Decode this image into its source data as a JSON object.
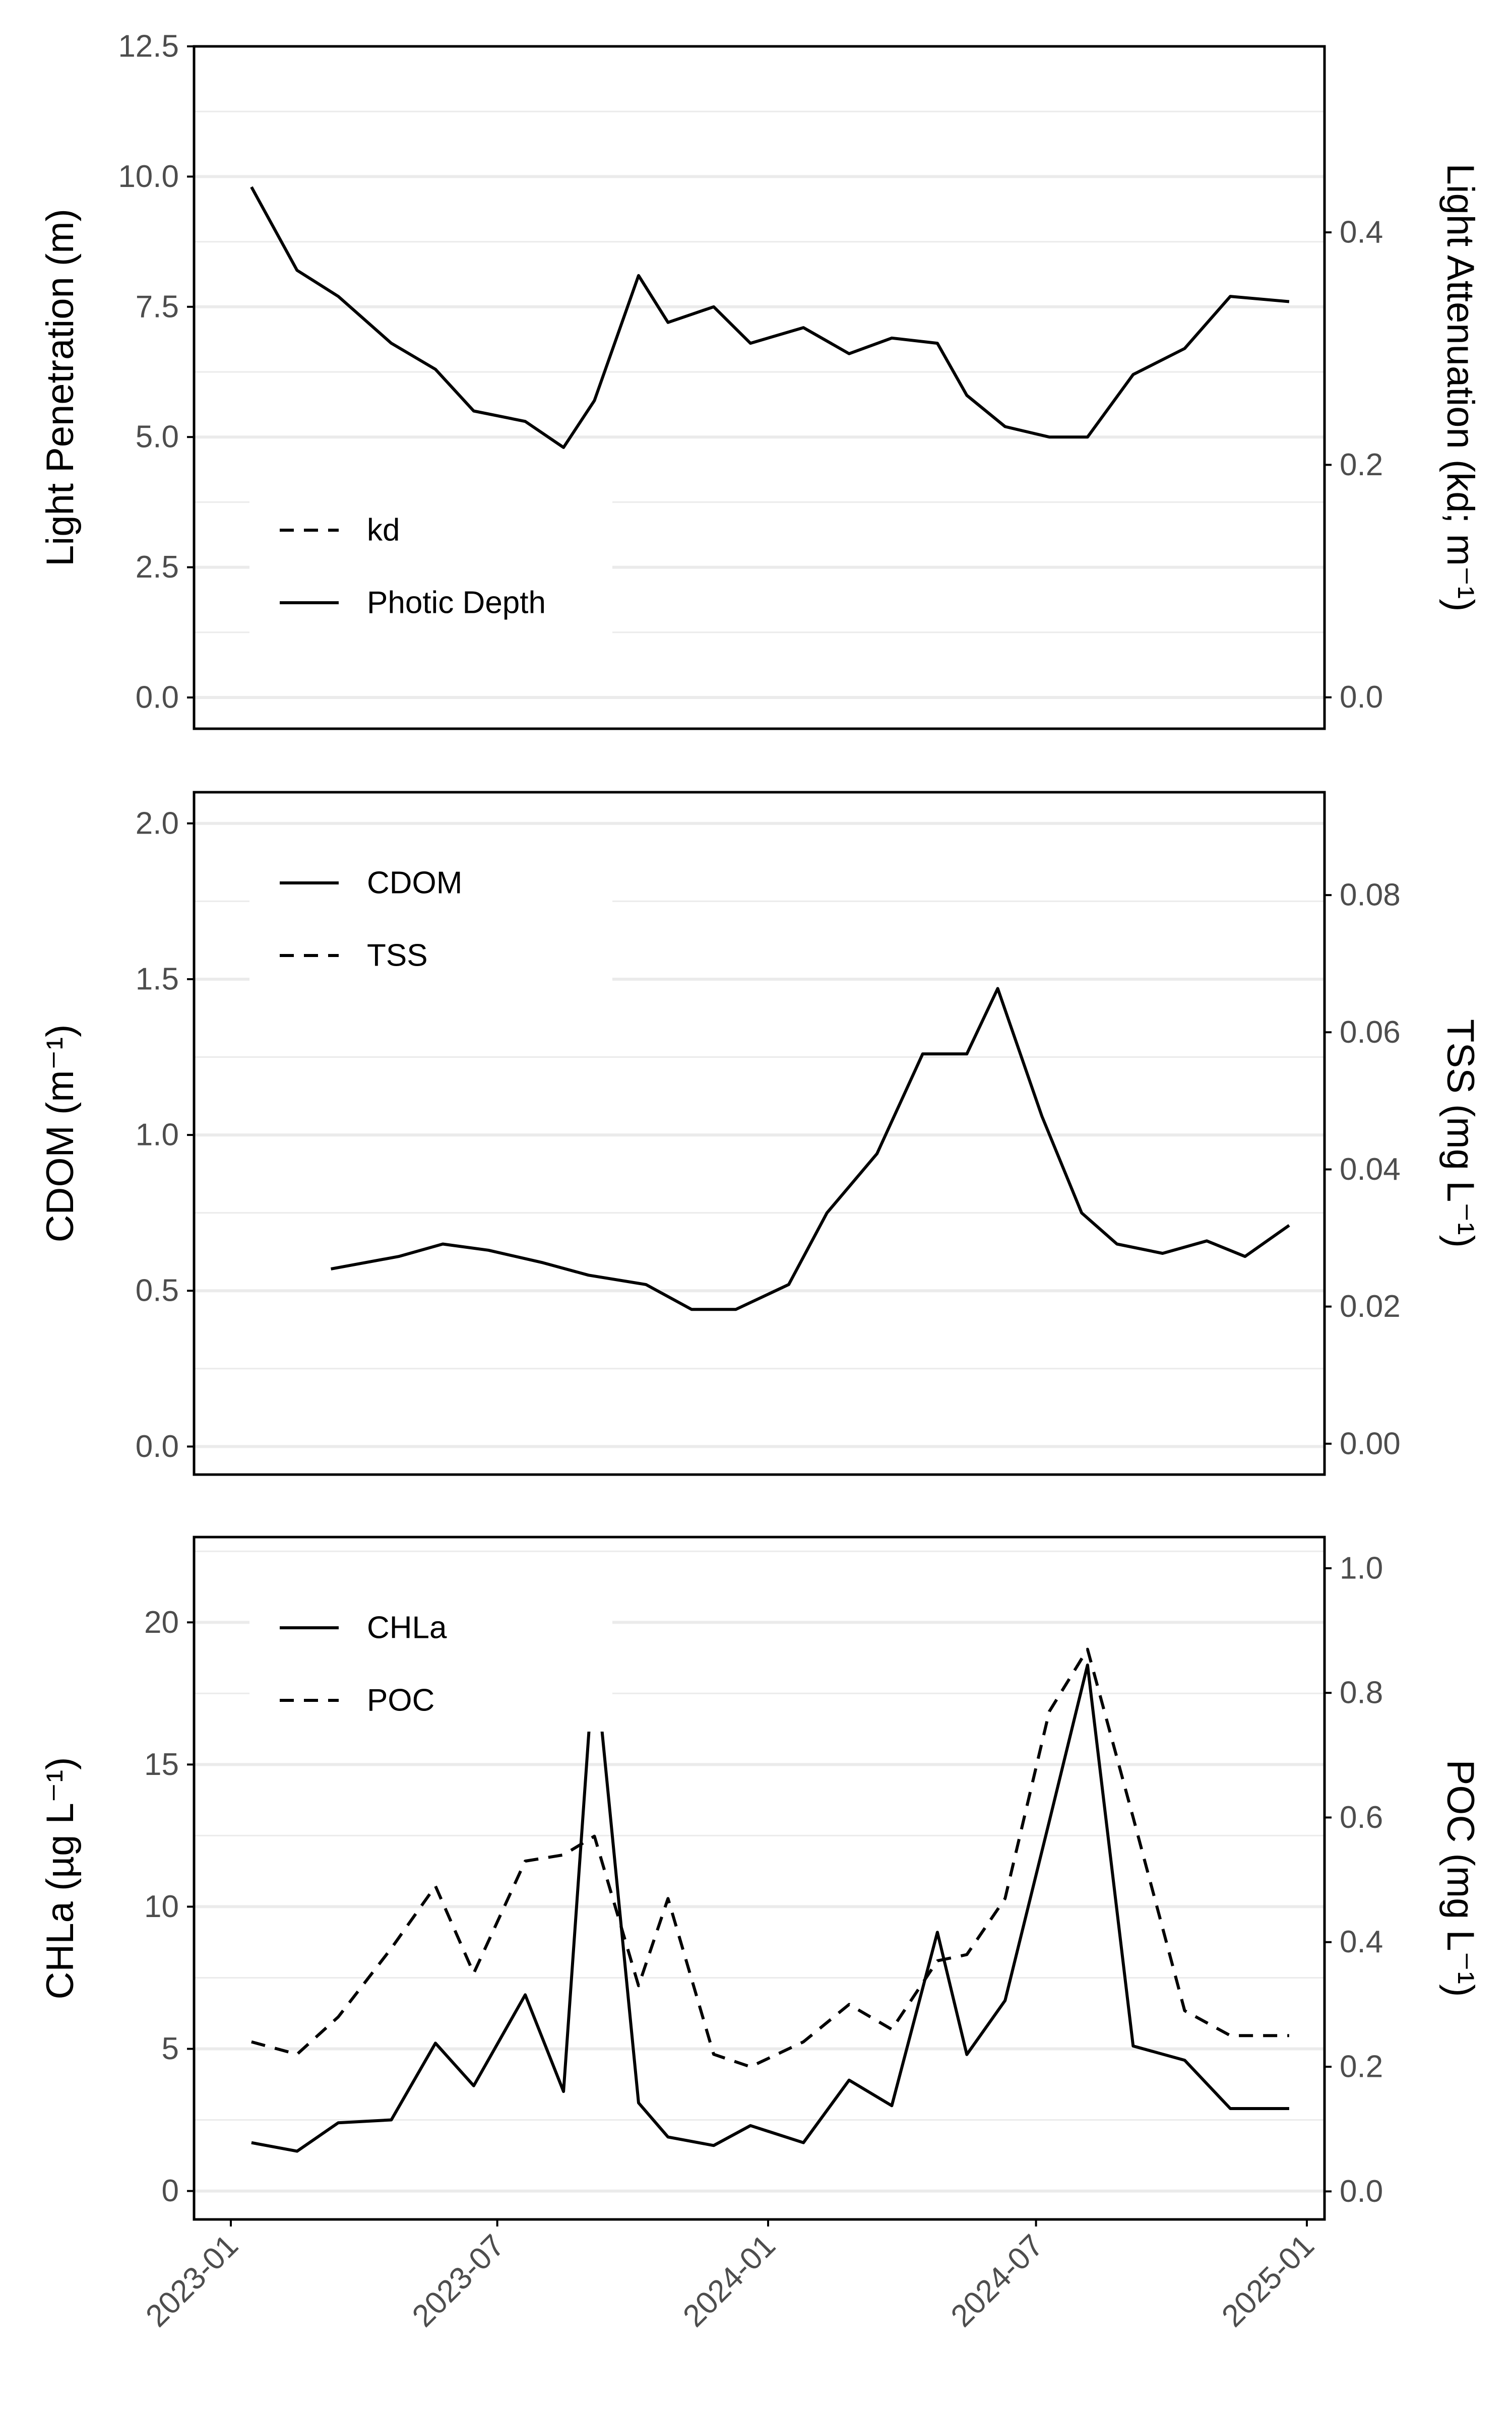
{
  "chart_data": [
    {
      "type": "line",
      "panel": "top",
      "y_left_label": "Light Penetration (m)",
      "y_right_label": "Light Attenuation (kd; m⁻¹)",
      "y_left_ticks": [
        "0.0",
        "2.5",
        "5.0",
        "7.5",
        "10.0",
        "12.5"
      ],
      "y_left_tick_values": [
        0,
        2.5,
        5,
        7.5,
        10,
        12.5
      ],
      "y_right_ticks": [
        "0.0",
        "0.2",
        "0.4"
      ],
      "y_right_tick_values": [
        0,
        0.2,
        0.4
      ],
      "ylim_left": [
        -0.6,
        12.5
      ],
      "ylim_right": [
        -0.027,
        0.56
      ],
      "legend_position": "bottom-left",
      "legend": [
        {
          "name": "kd",
          "style": "dashed"
        },
        {
          "name": "Photic Depth",
          "style": "solid"
        }
      ],
      "series": [
        {
          "name": "Photic Depth",
          "axis": "left",
          "style": "solid",
          "x": [
            "2023-01-15",
            "2023-02-15",
            "2023-03-15",
            "2023-04-20",
            "2023-05-20",
            "2023-06-15",
            "2023-07-20",
            "2023-08-15",
            "2023-09-05",
            "2023-10-05",
            "2023-10-25",
            "2023-11-25",
            "2023-12-20",
            "2024-01-25",
            "2024-02-25",
            "2024-03-25",
            "2024-04-25",
            "2024-05-15",
            "2024-06-10",
            "2024-07-10",
            "2024-08-05",
            "2024-09-05",
            "2024-10-10",
            "2024-11-10",
            "2024-12-20"
          ],
          "values": [
            9.8,
            8.2,
            7.7,
            6.8,
            6.3,
            5.5,
            5.3,
            4.8,
            5.7,
            8.1,
            7.2,
            7.5,
            6.8,
            7.1,
            6.6,
            6.9,
            6.8,
            5.8,
            5.2,
            5.0,
            5.0,
            6.2,
            6.7,
            7.7,
            7.6
          ]
        }
      ]
    },
    {
      "type": "line",
      "panel": "middle",
      "y_left_label": "CDOM (m⁻¹)",
      "y_right_label": "TSS (mg L⁻¹)",
      "y_left_ticks": [
        "0.0",
        "0.5",
        "1.0",
        "1.5",
        "2.0"
      ],
      "y_left_tick_values": [
        0,
        0.5,
        1,
        1.5,
        2
      ],
      "y_right_ticks": [
        "0.00",
        "0.02",
        "0.04",
        "0.06",
        "0.08"
      ],
      "y_right_tick_values": [
        0,
        0.02,
        0.04,
        0.06,
        0.08
      ],
      "ylim_left": [
        -0.09,
        2.1
      ],
      "ylim_right": [
        -0.0045,
        0.095
      ],
      "legend_position": "top-left",
      "legend": [
        {
          "name": "CDOM",
          "style": "solid"
        },
        {
          "name": "TSS",
          "style": "dashed"
        }
      ],
      "series": [
        {
          "name": "CDOM",
          "axis": "left",
          "style": "solid",
          "x": [
            "2023-03-10",
            "2023-04-25",
            "2023-05-25",
            "2023-06-25",
            "2023-08-01",
            "2023-09-01",
            "2023-10-10",
            "2023-11-10",
            "2023-12-10",
            "2024-01-15",
            "2024-02-10",
            "2024-03-15",
            "2024-04-15",
            "2024-05-15",
            "2024-06-05",
            "2024-07-05",
            "2024-08-01",
            "2024-08-25",
            "2024-09-25",
            "2024-10-25",
            "2024-11-20",
            "2024-12-20"
          ],
          "values": [
            0.57,
            0.61,
            0.65,
            0.63,
            0.59,
            0.55,
            0.52,
            0.44,
            0.44,
            0.52,
            0.75,
            0.94,
            1.26,
            1.26,
            1.47,
            1.06,
            0.75,
            0.65,
            0.62,
            0.66,
            0.61,
            0.71
          ]
        }
      ]
    },
    {
      "type": "line",
      "panel": "bottom",
      "y_left_label": "CHLa (µg L⁻¹)",
      "y_right_label": "POC (mg L⁻¹)",
      "y_left_ticks": [
        "0",
        "5",
        "10",
        "15",
        "20"
      ],
      "y_left_tick_values": [
        0,
        5,
        10,
        15,
        20
      ],
      "y_right_ticks": [
        "0.0",
        "0.2",
        "0.4",
        "0.6",
        "0.8",
        "1.0"
      ],
      "y_right_tick_values": [
        0,
        0.2,
        0.4,
        0.6,
        0.8,
        1.0
      ],
      "ylim_left": [
        -1.0,
        23.0
      ],
      "ylim_right": [
        -0.045,
        1.05
      ],
      "legend_position": "top-left",
      "legend": [
        {
          "name": "CHLa",
          "style": "solid"
        },
        {
          "name": "POC",
          "style": "dashed"
        }
      ],
      "x_ticks": [
        "2023-01",
        "2023-07",
        "2024-01",
        "2024-07",
        "2025-01"
      ],
      "x_tick_values": [
        "2023-01-01",
        "2023-07-01",
        "2024-01-01",
        "2024-07-01",
        "2025-01-01"
      ],
      "series": [
        {
          "name": "CHLa",
          "axis": "left",
          "style": "solid",
          "x": [
            "2023-01-15",
            "2023-02-15",
            "2023-03-15",
            "2023-04-20",
            "2023-05-20",
            "2023-06-15",
            "2023-07-20",
            "2023-08-15",
            "2023-09-05",
            "2023-10-05",
            "2023-10-25",
            "2023-11-25",
            "2023-12-20",
            "2024-01-25",
            "2024-02-25",
            "2024-03-25",
            "2024-04-25",
            "2024-05-15",
            "2024-06-10",
            "2024-07-10",
            "2024-08-05",
            "2024-09-05",
            "2024-10-10",
            "2024-11-10",
            "2024-12-20"
          ],
          "values": [
            1.7,
            1.4,
            2.4,
            2.5,
            5.2,
            3.7,
            6.9,
            3.5,
            18.9,
            3.1,
            1.9,
            1.6,
            2.3,
            1.7,
            3.9,
            3.0,
            9.1,
            4.8,
            6.7,
            13.0,
            18.5,
            5.1,
            4.6,
            2.9,
            2.9
          ]
        },
        {
          "name": "POC",
          "axis": "right",
          "style": "dashed",
          "x": [
            "2023-01-15",
            "2023-02-15",
            "2023-03-15",
            "2023-04-20",
            "2023-05-20",
            "2023-06-15",
            "2023-07-20",
            "2023-08-15",
            "2023-09-05",
            "2023-10-05",
            "2023-10-25",
            "2023-11-25",
            "2023-12-20",
            "2024-01-25",
            "2024-02-25",
            "2024-03-25",
            "2024-04-25",
            "2024-05-15",
            "2024-06-10",
            "2024-07-10",
            "2024-08-05",
            "2024-09-05",
            "2024-10-10",
            "2024-11-10",
            "2024-12-20"
          ],
          "values": [
            0.24,
            0.22,
            0.28,
            0.39,
            0.49,
            0.35,
            0.53,
            0.54,
            0.57,
            0.33,
            0.47,
            0.22,
            0.2,
            0.24,
            0.3,
            0.26,
            0.37,
            0.38,
            0.47,
            0.77,
            0.87,
            0.6,
            0.29,
            0.25,
            0.25
          ]
        }
      ]
    }
  ]
}
